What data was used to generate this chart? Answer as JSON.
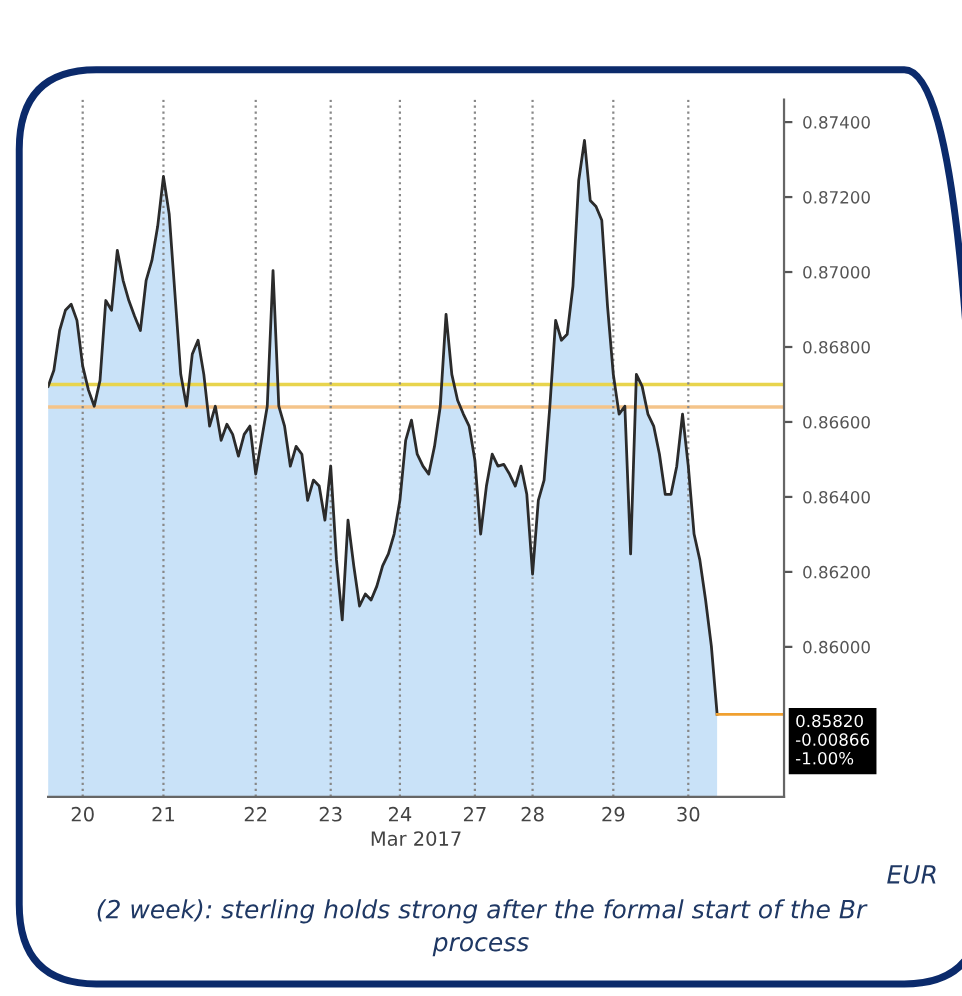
{
  "chart_data": {
    "type": "area",
    "xlabel": "Mar 2017",
    "ylim": [
      0.856,
      0.8746
    ],
    "categories": [
      null,
      null,
      null,
      null,
      null,
      null,
      "20",
      null,
      null,
      null,
      null,
      null,
      null,
      null,
      null,
      null,
      null,
      null,
      null,
      null,
      "21",
      null,
      null,
      null,
      null,
      null,
      null,
      null,
      null,
      null,
      null,
      null,
      null,
      null,
      null,
      null,
      "22",
      null,
      null,
      null,
      null,
      null,
      null,
      null,
      null,
      null,
      null,
      null,
      null,
      "23",
      null,
      null,
      null,
      null,
      null,
      null,
      null,
      null,
      null,
      null,
      null,
      "24",
      null,
      null,
      null,
      null,
      null,
      null,
      null,
      null,
      null,
      null,
      null,
      null,
      "27",
      null,
      null,
      null,
      null,
      null,
      null,
      null,
      null,
      null,
      "28",
      null,
      null,
      null,
      null,
      null,
      null,
      null,
      null,
      null,
      null,
      null,
      null,
      null,
      "29",
      null,
      null,
      null,
      null,
      null,
      null,
      null,
      null,
      null,
      null,
      null,
      null,
      "30",
      null,
      null,
      null,
      null,
      null
    ],
    "yticks": [
      {
        "value": 0.86,
        "label": "0.86000"
      },
      {
        "value": 0.862,
        "label": "0.86200"
      },
      {
        "value": 0.864,
        "label": "0.86400"
      },
      {
        "value": 0.866,
        "label": "0.86600"
      },
      {
        "value": 0.868,
        "label": "0.86800"
      },
      {
        "value": 0.87,
        "label": "0.87000"
      },
      {
        "value": 0.872,
        "label": "0.87200"
      },
      {
        "value": 0.874,
        "label": "0.87400"
      }
    ],
    "grid": "x",
    "legend": false,
    "series": [
      {
        "color": "#c9e2f8",
        "values": [
          0.86695,
          0.86738,
          0.86844,
          0.86898,
          0.86914,
          0.86871,
          0.86749,
          0.86685,
          0.86642,
          0.86711,
          0.86924,
          0.86898,
          0.87058,
          0.86978,
          0.86924,
          0.86882,
          0.86844,
          0.86978,
          0.87031,
          0.87122,
          0.87255,
          0.87154,
          0.8694,
          0.86727,
          0.86642,
          0.86781,
          0.86818,
          0.86727,
          0.86589,
          0.86642,
          0.86551,
          0.86594,
          0.86567,
          0.86509,
          0.86567,
          0.86589,
          0.86461,
          0.86551,
          0.86642,
          0.87004,
          0.86642,
          0.86589,
          0.86482,
          0.86535,
          0.86514,
          0.86391,
          0.86445,
          0.86429,
          0.86338,
          0.86482,
          0.86232,
          0.86072,
          0.86338,
          0.86216,
          0.86109,
          0.86141,
          0.86125,
          0.86162,
          0.86216,
          0.86248,
          0.86301,
          0.86391,
          0.86551,
          0.86605,
          0.86514,
          0.86482,
          0.86461,
          0.86535,
          0.86642,
          0.86887,
          0.86727,
          0.86658,
          0.86621,
          0.86589,
          0.86498,
          0.86301,
          0.86429,
          0.86514,
          0.86482,
          0.86487,
          0.86461,
          0.86429,
          0.86482,
          0.86407,
          0.86194,
          0.86391,
          0.86445,
          0.86642,
          0.86871,
          0.86818,
          0.86834,
          0.86962,
          0.87244,
          0.87351,
          0.87191,
          0.87175,
          0.87138,
          0.86908,
          0.86727,
          0.86621,
          0.86642,
          0.86248,
          0.86727,
          0.86695,
          0.86621,
          0.86589,
          0.86514,
          0.86407,
          0.86407,
          0.86482,
          0.86621,
          0.86482,
          0.86301,
          0.86232,
          0.86125,
          0.86002,
          0.8582
        ]
      }
    ],
    "ref_lines": [
      {
        "axis": "y",
        "value": 0.867,
        "color": "#e8d44d"
      },
      {
        "axis": "y",
        "value": 0.8664,
        "color": "#f4c48a"
      }
    ],
    "annotations": [
      "0.85820\n-0.00866\n-1.00%",
      "EUR",
      "(2 week): sterling holds strong after the formal start of the Br",
      "process"
    ]
  }
}
